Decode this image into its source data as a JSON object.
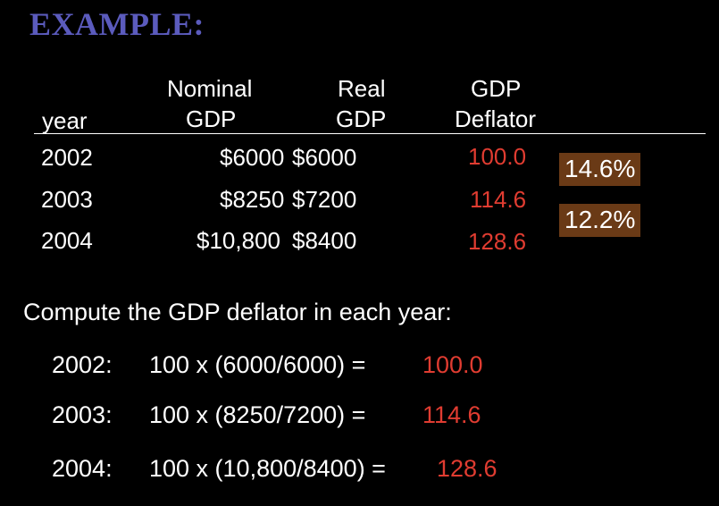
{
  "title": "EXAMPLE:",
  "table": {
    "headers": {
      "year": "year",
      "nominal_line1": "Nominal",
      "nominal_line2": "GDP",
      "real_line1": "Real",
      "real_line2": "GDP",
      "deflator_line1": "GDP",
      "deflator_line2": "Deflator"
    },
    "rows": [
      {
        "year": "2002",
        "nominal": "$6000",
        "real": "$6000",
        "deflator": "100.0"
      },
      {
        "year": "2003",
        "nominal": "$8250",
        "real": "$7200",
        "deflator": "114.6"
      },
      {
        "year": "2004",
        "nominal": "$10,800",
        "real": "$8400",
        "deflator": "128.6"
      }
    ],
    "growth_badges": [
      "14.6%",
      "12.2%"
    ]
  },
  "prompt": "Compute the GDP deflator in each year:",
  "calculations": [
    {
      "year": "2002:",
      "formula": "100 x (6000/6000)  =",
      "result": "100.0"
    },
    {
      "year": "2003:",
      "formula": "100 x (8250/7200)  =",
      "result": "114.6"
    },
    {
      "year": "2004:",
      "formula": "100 x (10,800/8400) =",
      "result": "128.6"
    }
  ],
  "colors": {
    "title": "#5b5bbd",
    "highlight": "#e03c31",
    "badge_bg": "#6a3a16",
    "background": "#000000"
  }
}
